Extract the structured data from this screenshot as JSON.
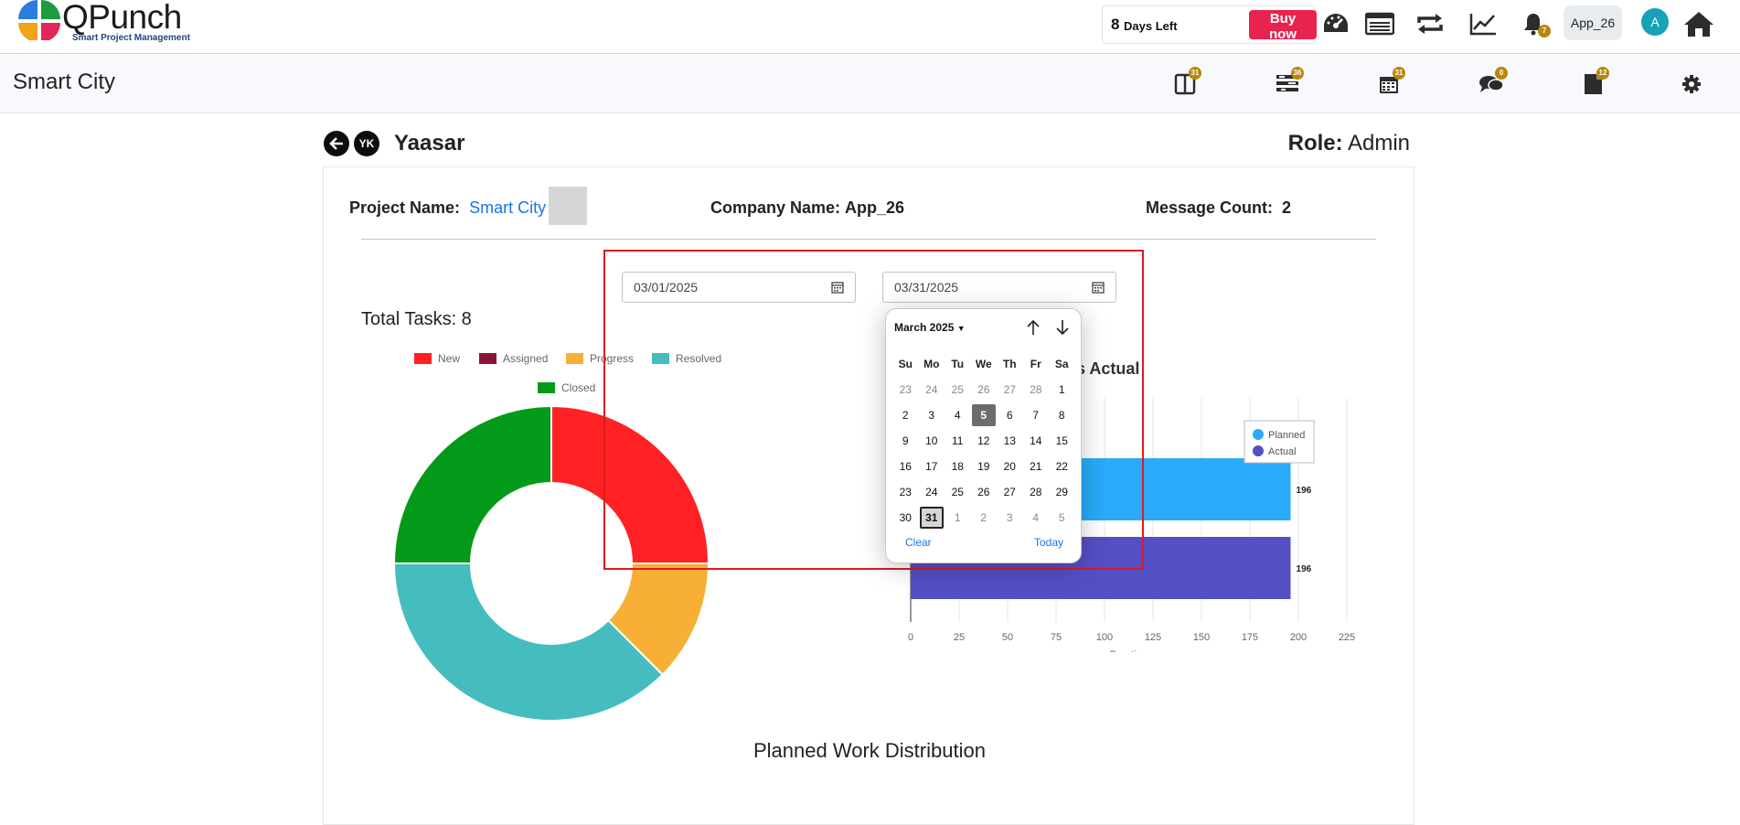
{
  "header": {
    "brand_name": "QPunch",
    "brand_tagline": "Smart Project Management",
    "trial_days": "8",
    "trial_text": "Days Left",
    "buy_label": "Buy now",
    "icons": [
      "dashboard-icon",
      "list-icon",
      "repeat-icon",
      "trend-icon",
      "bell-icon",
      "home-icon"
    ],
    "notification_count": "7",
    "app_name": "App_26",
    "avatar_initial": "A"
  },
  "project_bar": {
    "title": "Smart City",
    "icons": [
      {
        "name": "board-icon",
        "count": "31"
      },
      {
        "name": "tasks-icon",
        "count": "36"
      },
      {
        "name": "calendar-icon",
        "count": "31"
      },
      {
        "name": "chat-icon",
        "count": "0"
      },
      {
        "name": "document-icon",
        "count": "12"
      },
      {
        "name": "settings-icon",
        "count": ""
      }
    ]
  },
  "user": {
    "back_icon": "arrow-left-icon",
    "initials": "YK",
    "name": "Yaasar",
    "role_label": "Role:",
    "role_value": "Admin"
  },
  "info": {
    "project_label": "Project Name:",
    "project_value": "Smart City",
    "company_label": "Company Name:",
    "company_value": "App_26",
    "message_label": "Message Count:",
    "message_value": "2"
  },
  "filters": {
    "start_date": "03/01/2025",
    "end_date": "03/31/2025"
  },
  "datepicker": {
    "month_label": "March 2025",
    "weekdays": [
      "Su",
      "Mo",
      "Tu",
      "We",
      "Th",
      "Fr",
      "Sa"
    ],
    "weeks": [
      [
        "23",
        "24",
        "25",
        "26",
        "27",
        "28",
        "1"
      ],
      [
        "2",
        "3",
        "4",
        "5",
        "6",
        "7",
        "8"
      ],
      [
        "9",
        "10",
        "11",
        "12",
        "13",
        "14",
        "15"
      ],
      [
        "16",
        "17",
        "18",
        "19",
        "20",
        "21",
        "22"
      ],
      [
        "23",
        "24",
        "25",
        "26",
        "27",
        "28",
        "29"
      ],
      [
        "30",
        "31",
        "1",
        "2",
        "3",
        "4",
        "5"
      ]
    ],
    "today": "5",
    "selected": "31",
    "clear_label": "Clear",
    "today_label": "Today"
  },
  "total_tasks": "Total Tasks: 8",
  "bottom_title": "Planned Work Distribution",
  "chart_data": [
    {
      "type": "pie",
      "title": "",
      "legend": [
        "New",
        "Assigned",
        "Progress",
        "Resolved",
        "Closed"
      ],
      "colors": [
        "#ff2124",
        "#8b1538",
        "#f7b035",
        "#45bdbf",
        "#049a19"
      ],
      "values": [
        2,
        0,
        1,
        3,
        2
      ],
      "legend_placement": "top"
    },
    {
      "type": "bar",
      "orientation": "horizontal",
      "title": "Planned Vs Actual",
      "series": [
        {
          "name": "Planned",
          "values": [
            196
          ],
          "color": "#2aaaf9"
        },
        {
          "name": "Actual",
          "values": [
            196
          ],
          "color": "#5350c5"
        }
      ],
      "xlabel": "Duration",
      "xlim": [
        0,
        225
      ],
      "xticks": [
        "0",
        "25",
        "50",
        "75",
        "100",
        "125",
        "150",
        "175",
        "200",
        "225"
      ],
      "grid": true,
      "legend_placement": "top-right"
    }
  ]
}
